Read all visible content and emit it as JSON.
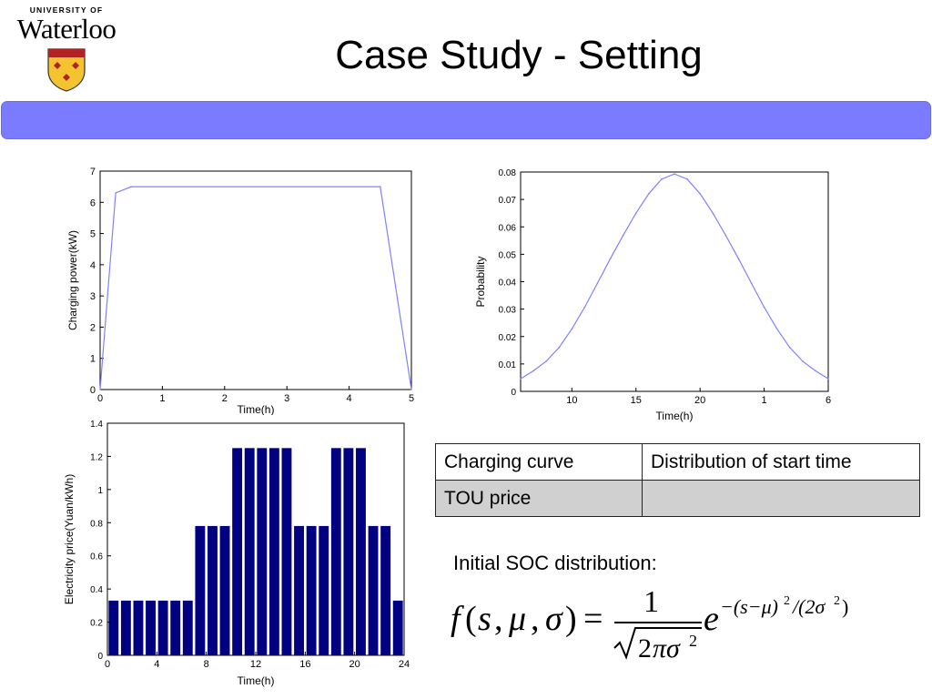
{
  "logo": {
    "line1": "UNIVERSITY OF",
    "line2": "Waterloo"
  },
  "slide": {
    "title": "Case Study - Setting"
  },
  "table": {
    "rows": [
      [
        "Charging curve",
        "Distribution of start time"
      ],
      [
        "TOU price",
        ""
      ]
    ]
  },
  "soc": {
    "label": "Initial SOC distribution:",
    "formula": "f(s, μ, σ) = 1/√(2πσ²) e^(−(s−μ)²/(2σ²))"
  },
  "chart_data": [
    {
      "type": "line",
      "xlabel": "Time(h)",
      "ylabel": "Charging power(kW)",
      "xlim": [
        0,
        5
      ],
      "ylim": [
        0,
        7
      ],
      "xticks": [
        "0",
        "1",
        "2",
        "3",
        "4",
        "5"
      ],
      "yticks": [
        "0",
        "1",
        "2",
        "3",
        "4",
        "5",
        "6",
        "7"
      ],
      "x": [
        0,
        0.25,
        0.5,
        4.5,
        5
      ],
      "y": [
        0,
        6.3,
        6.5,
        6.5,
        0
      ],
      "color": "#8080ff",
      "grid": false
    },
    {
      "type": "line",
      "xlabel": "Time(h)",
      "ylabel": "Probability",
      "xticks": [
        "10",
        "15",
        "20",
        "1",
        "6"
      ],
      "yticks": [
        "0",
        "0.01",
        "0.02",
        "0.03",
        "0.04",
        "0.05",
        "0.06",
        "0.07",
        "0.08"
      ],
      "ylim": [
        0,
        0.08
      ],
      "x": [
        "6",
        "7",
        "8",
        "9",
        "10",
        "11",
        "12",
        "13",
        "14",
        "15",
        "16",
        "17",
        "18",
        "19",
        "20",
        "21",
        "22",
        "23",
        "24",
        "1",
        "2",
        "3",
        "4",
        "5",
        "6"
      ],
      "y": [
        0.0046,
        0.0075,
        0.011,
        0.016,
        0.0228,
        0.0307,
        0.0395,
        0.0484,
        0.0569,
        0.065,
        0.0721,
        0.0774,
        0.0793,
        0.0774,
        0.0721,
        0.065,
        0.0569,
        0.0484,
        0.0395,
        0.0307,
        0.0228,
        0.016,
        0.011,
        0.0075,
        0.0046
      ],
      "color": "#8080ff",
      "grid": false
    },
    {
      "type": "bar",
      "xlabel": "Time(h)",
      "ylabel": "Electricity price(Yuan/kWh)",
      "xlim": [
        0,
        24
      ],
      "ylim": [
        0,
        1.4
      ],
      "xticks": [
        "0",
        "4",
        "8",
        "12",
        "16",
        "20",
        "24"
      ],
      "yticks": [
        "0",
        "0.2",
        "0.4",
        "0.6",
        "0.8",
        "1",
        "1.2",
        "1.4"
      ],
      "categories": [
        "1",
        "2",
        "3",
        "4",
        "5",
        "6",
        "7",
        "8",
        "9",
        "10",
        "11",
        "12",
        "13",
        "14",
        "15",
        "16",
        "17",
        "18",
        "19",
        "20",
        "21",
        "22",
        "23",
        "24"
      ],
      "values": [
        0.33,
        0.33,
        0.33,
        0.33,
        0.33,
        0.33,
        0.33,
        0.78,
        0.78,
        0.78,
        1.25,
        1.25,
        1.25,
        1.25,
        1.25,
        0.78,
        0.78,
        0.78,
        1.25,
        1.25,
        1.25,
        0.78,
        0.78,
        0.33
      ],
      "color": "#000080",
      "grid": false
    }
  ]
}
